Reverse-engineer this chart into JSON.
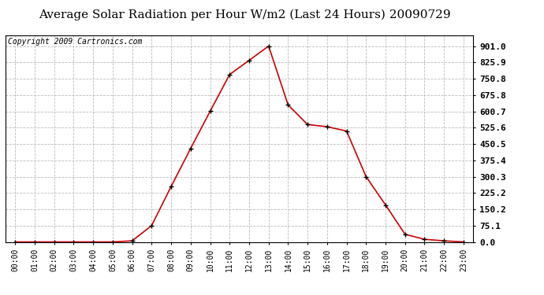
{
  "title": "Average Solar Radiation per Hour W/m2 (Last 24 Hours) 20090729",
  "copyright": "Copyright 2009 Cartronics.com",
  "x_labels": [
    "00:00",
    "01:00",
    "02:00",
    "03:00",
    "04:00",
    "05:00",
    "06:00",
    "07:00",
    "08:00",
    "09:00",
    "10:00",
    "11:00",
    "12:00",
    "13:00",
    "14:00",
    "15:00",
    "16:00",
    "17:00",
    "18:00",
    "19:00",
    "20:00",
    "21:00",
    "22:00",
    "23:00"
  ],
  "y_values": [
    0.0,
    0.0,
    0.0,
    0.0,
    0.0,
    0.0,
    5.0,
    75.1,
    255.0,
    430.0,
    601.0,
    770.0,
    835.0,
    901.0,
    630.0,
    540.0,
    530.0,
    510.0,
    300.0,
    170.0,
    35.0,
    12.0,
    5.0,
    0.0
  ],
  "line_color": "#cc0000",
  "marker_color": "#000000",
  "bg_color": "#ffffff",
  "grid_color": "#bbbbbb",
  "yticks": [
    0.0,
    75.1,
    150.2,
    225.2,
    300.3,
    375.4,
    450.5,
    525.6,
    600.7,
    675.8,
    750.8,
    825.9,
    901.0
  ],
  "title_fontsize": 11,
  "copyright_fontsize": 7,
  "tick_fontsize": 7,
  "ytick_fontsize": 8
}
